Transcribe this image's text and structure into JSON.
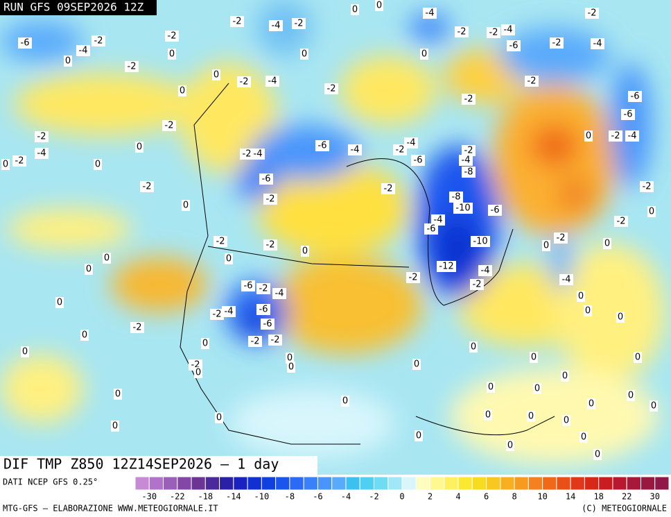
{
  "header": {
    "run": "RUN GFS 09SEP2026 12Z"
  },
  "map": {
    "title": "DIF TMP Z850 12Z14SEP2026 – 1 day",
    "contour_labels": [
      -6,
      -4,
      -2,
      0,
      -2,
      -2,
      0,
      -2,
      -4,
      -2,
      0,
      0,
      -4,
      -2,
      -2,
      -4,
      -6,
      -2,
      -4,
      -2,
      0,
      0,
      0,
      -2,
      -4,
      -2,
      0,
      -2,
      -2,
      -6,
      -6,
      0,
      -2,
      -4,
      -2,
      -2,
      -4,
      0,
      -2,
      0,
      0,
      -2,
      0,
      -2,
      -4,
      -6,
      -4,
      -2,
      -4,
      -6,
      -2,
      -4,
      -8,
      -2,
      -6,
      -2,
      -8,
      -10,
      -6,
      -4,
      -6,
      -2,
      0,
      -2,
      -2,
      0,
      0,
      -10,
      -12,
      -4,
      -2,
      -2,
      -4,
      -2,
      0,
      -2,
      0,
      0,
      0,
      -6,
      -2,
      -4,
      0,
      0,
      0,
      -2,
      -4,
      -6,
      -6,
      -2,
      -2,
      0,
      -2,
      0,
      0,
      0,
      0,
      0,
      -2,
      0,
      0,
      0,
      0,
      0,
      0,
      0,
      0,
      0,
      0,
      0,
      0,
      0,
      0,
      0,
      0,
      0,
      0,
      0,
      0,
      0,
      0
    ]
  },
  "footer": {
    "source": "DATI NCEP GFS 0.25°",
    "credit": "MTG-GFS — ELABORAZIONE WWW.METEOGIORNALE.IT",
    "copyright": "(C) METEOGIORNALE",
    "colorbar": {
      "colors": [
        "#c78bd6",
        "#b173c9",
        "#9a5fb8",
        "#8348a6",
        "#6c3595",
        "#4a2a9a",
        "#2a20a8",
        "#1a22c0",
        "#1030d0",
        "#1040e0",
        "#1a55ee",
        "#2a6af5",
        "#3a80fa",
        "#4a95fc",
        "#5aaafc",
        "#3cc0f0",
        "#50d0f0",
        "#70dcf4",
        "#a0e8f8",
        "#d8f6fc",
        "#fffcc0",
        "#fff890",
        "#fff060",
        "#fbe830",
        "#f8dc20",
        "#f8c820",
        "#f8b020",
        "#f89a20",
        "#f58020",
        "#f06818",
        "#e85018",
        "#e03818",
        "#d82818",
        "#c81c20",
        "#b81830",
        "#a81838",
        "#981840",
        "#901848"
      ],
      "ticks": [
        -30,
        -22,
        -18,
        -14,
        -10,
        -8,
        -6,
        -4,
        -2,
        0,
        2,
        4,
        6,
        8,
        10,
        14,
        18,
        22,
        30
      ]
    }
  }
}
